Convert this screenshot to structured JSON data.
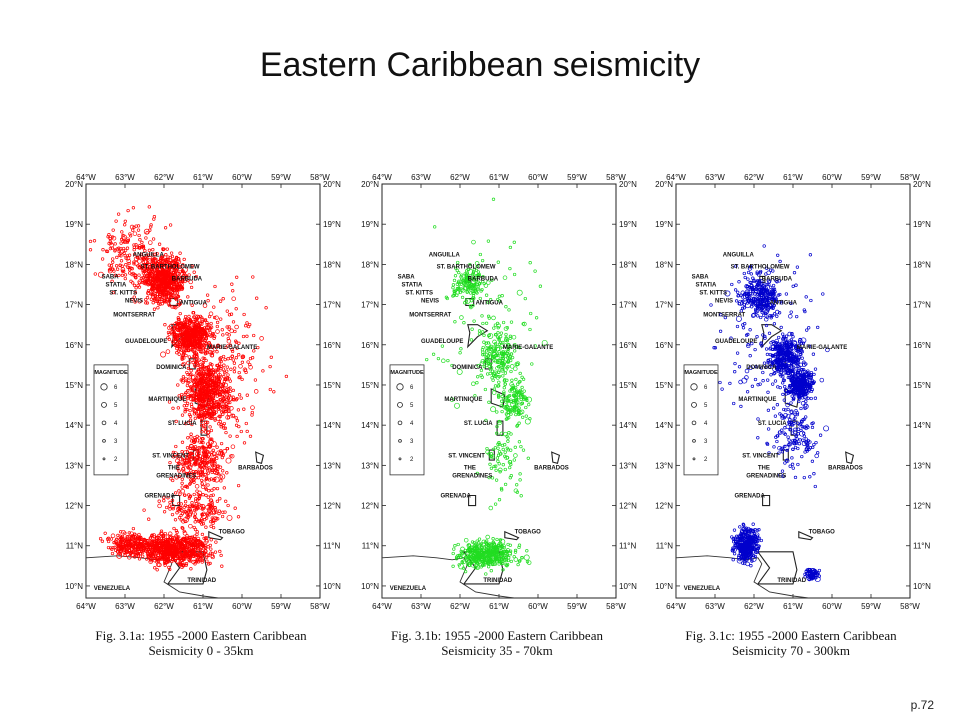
{
  "slide": {
    "title": "Eastern Caribbean seismicity",
    "page_number": "p.72"
  },
  "axes": {
    "lon_labels": [
      "64°W",
      "63°W",
      "62°W",
      "61°W",
      "60°W",
      "59°W",
      "58°W"
    ],
    "lat_labels": [
      "20°N",
      "19°N",
      "18°N",
      "17°N",
      "16°N",
      "15°N",
      "14°N",
      "13°N",
      "12°N",
      "11°N",
      "10°N"
    ],
    "lon_range": [
      -64,
      -58
    ],
    "lat_range": [
      9.7,
      20
    ]
  },
  "legend": {
    "title": "MAGNITUDE",
    "values": [
      "6",
      "5",
      "4",
      "3",
      "2"
    ]
  },
  "places": [
    {
      "name": "ANGUILLA",
      "lon": -62.8,
      "lat": 18.2
    },
    {
      "name": "ST. BARTHOLOMEW",
      "lon": -62.6,
      "lat": 17.9
    },
    {
      "name": "BARBUDA",
      "lon": -61.8,
      "lat": 17.6
    },
    {
      "name": "SABA",
      "lon": -63.6,
      "lat": 17.65
    },
    {
      "name": "STATIA",
      "lon": -63.5,
      "lat": 17.45
    },
    {
      "name": "ST. KITTS",
      "lon": -63.4,
      "lat": 17.25
    },
    {
      "name": "NEVIS",
      "lon": -63.0,
      "lat": 17.05
    },
    {
      "name": "ANTIGUA",
      "lon": -61.6,
      "lat": 17.0
    },
    {
      "name": "MONTSERRAT",
      "lon": -63.3,
      "lat": 16.7
    },
    {
      "name": "GUADELOUPE",
      "lon": -63.0,
      "lat": 16.05
    },
    {
      "name": "MARIE-GALANTE",
      "lon": -60.9,
      "lat": 15.9
    },
    {
      "name": "DOMINICA",
      "lon": -62.2,
      "lat": 15.4
    },
    {
      "name": "MARTINIQUE",
      "lon": -62.4,
      "lat": 14.6
    },
    {
      "name": "ST. LUCIA",
      "lon": -61.9,
      "lat": 14.0
    },
    {
      "name": "ST. VINCENT",
      "lon": -62.3,
      "lat": 13.2
    },
    {
      "name": "THE",
      "lon": -61.9,
      "lat": 12.9
    },
    {
      "name": "GRENADINES",
      "lon": -62.2,
      "lat": 12.7
    },
    {
      "name": "BARBADOS",
      "lon": -60.1,
      "lat": 12.9
    },
    {
      "name": "GRENADA",
      "lon": -62.5,
      "lat": 12.2
    },
    {
      "name": "TOBAGO",
      "lon": -60.6,
      "lat": 11.3
    },
    {
      "name": "TRINIDAD",
      "lon": -61.4,
      "lat": 10.1
    },
    {
      "name": "VENEZUELA",
      "lon": -63.8,
      "lat": 9.9
    }
  ],
  "panels": [
    {
      "id": "a",
      "color": "#ff0000",
      "caption_line1": "Fig. 3.1a: 1955 -2000 Eastern Caribbean",
      "caption_line2": "Seismicity 0 - 35km"
    },
    {
      "id": "b",
      "color": "#22dd22",
      "caption_line1": "Fig. 3.1b: 1955 -2000 Eastern Caribbean",
      "caption_line2": "Seismicity 35 - 70km"
    },
    {
      "id": "c",
      "color": "#0000cc",
      "caption_line1": "Fig. 3.1c: 1955 -2000 Eastern Caribbean",
      "caption_line2": "Seismicity 70 - 300km"
    }
  ]
}
